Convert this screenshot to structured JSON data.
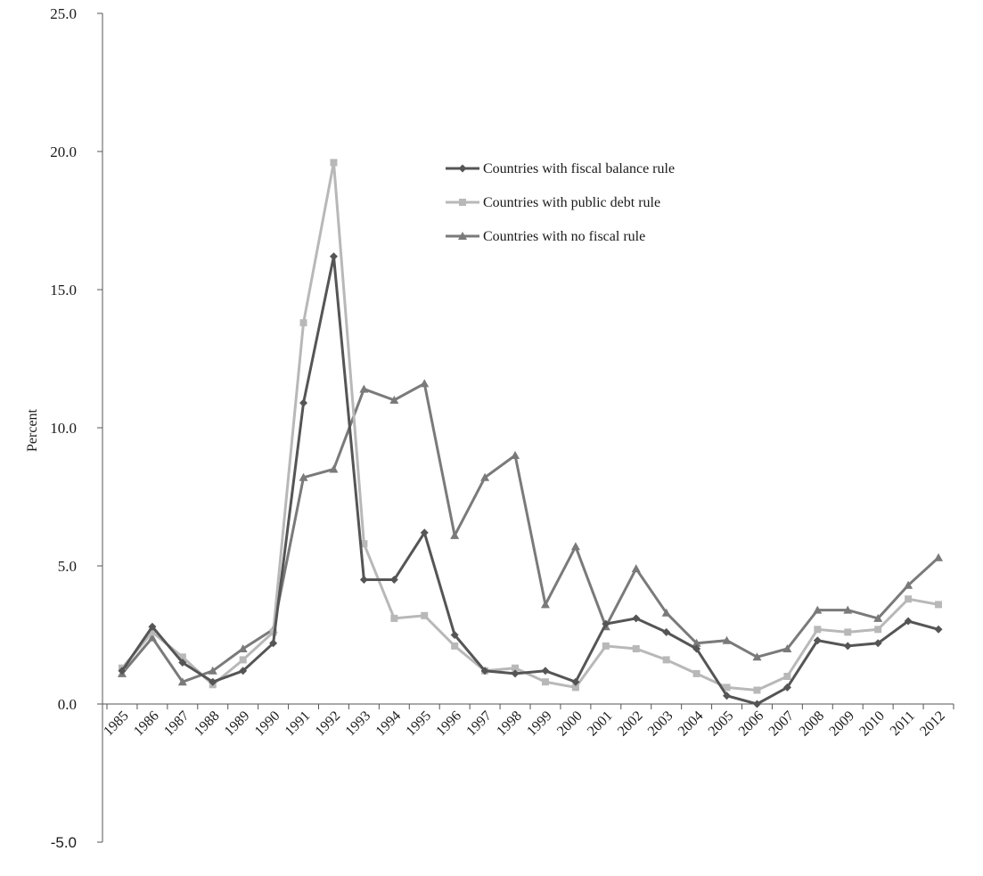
{
  "chart_data": {
    "type": "line",
    "title": "",
    "xlabel": "",
    "ylabel": "Percent",
    "ylim": [
      -5,
      25
    ],
    "yticks": [
      "25.0",
      "20.0",
      "15.0",
      "10.0",
      "5.0",
      "0.0",
      "-5.0"
    ],
    "ytick_values": [
      25,
      20,
      15,
      10,
      5,
      0,
      -5
    ],
    "grid": false,
    "legend_position": "upper-center",
    "categories": [
      "1985",
      "1986",
      "1987",
      "1988",
      "1989",
      "1990",
      "1991",
      "1992",
      "1993",
      "1994",
      "1995",
      "1996",
      "1997",
      "1998",
      "1999",
      "2000",
      "2001",
      "2002",
      "2003",
      "2004",
      "2005",
      "2006",
      "2007",
      "2008",
      "2009",
      "2010",
      "2011",
      "2012"
    ],
    "series": [
      {
        "name": "Countries with fiscal balance rule",
        "color": "#555555",
        "marker": "diamond",
        "values": [
          1.2,
          2.8,
          1.5,
          0.8,
          1.2,
          2.2,
          10.9,
          16.2,
          4.5,
          4.5,
          6.2,
          2.5,
          1.2,
          1.1,
          1.2,
          0.8,
          2.9,
          3.1,
          2.6,
          2.0,
          0.3,
          0.0,
          0.6,
          2.3,
          2.1,
          2.2,
          3.0,
          2.7
        ]
      },
      {
        "name": "Countries with public debt rule",
        "color": "#b8b8b8",
        "marker": "square",
        "values": [
          1.3,
          2.6,
          1.7,
          0.7,
          1.6,
          2.6,
          13.8,
          19.6,
          5.8,
          3.1,
          3.2,
          2.1,
          1.2,
          1.3,
          0.8,
          0.6,
          2.1,
          2.0,
          1.6,
          1.1,
          0.6,
          0.5,
          1.0,
          2.7,
          2.6,
          2.7,
          3.8,
          3.6
        ]
      },
      {
        "name": "Countries with no fiscal rule",
        "color": "#7a7a7a",
        "marker": "triangle",
        "values": [
          1.1,
          2.4,
          0.8,
          1.2,
          2.0,
          2.7,
          8.2,
          8.5,
          11.4,
          11.0,
          11.6,
          6.1,
          8.2,
          9.0,
          3.6,
          5.7,
          2.8,
          4.9,
          3.3,
          2.2,
          2.3,
          1.7,
          2.0,
          3.4,
          3.4,
          3.1,
          4.3,
          5.3
        ]
      }
    ]
  }
}
